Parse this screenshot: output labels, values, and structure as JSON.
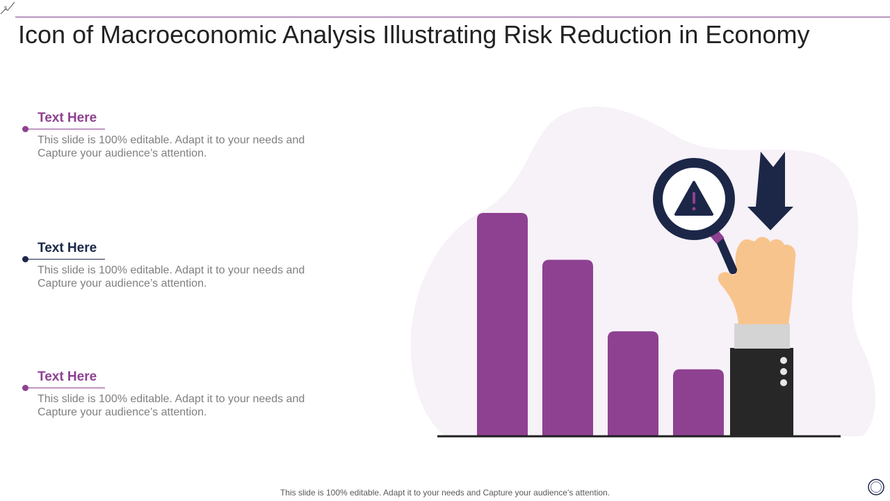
{
  "slide": {
    "title": "Icon of Macroeconomic Analysis Illustrating Risk Reduction in Economy",
    "footer": "This slide is 100% editable. Adapt it to your needs and Capture your audience’s attention."
  },
  "colors": {
    "accent_purple": "#8e4191",
    "accent_navy": "#1c2748",
    "background_blob": "#f7f1f8",
    "skin": "#f8c48d",
    "sleeve": "#272727",
    "cuff": "#d4d4d4"
  },
  "points": [
    {
      "heading": "Text Here",
      "body": "This slide is 100% editable. Adapt it to your needs and Capture your audience’s attention.",
      "color": "#8e4191"
    },
    {
      "heading": "Text Here",
      "body": "This slide is 100% editable. Adapt it to your needs and Capture your audience’s attention.",
      "color": "#1c2748"
    },
    {
      "heading": "Text Here",
      "body": "This slide is 100% editable. Adapt it to your needs and Capture your audience’s attention.",
      "color": "#8e4191"
    }
  ],
  "illustration": {
    "icons": [
      "bar-chart-icon",
      "magnifier-icon",
      "warning-icon",
      "down-arrow-icon",
      "hand-icon"
    ],
    "bar_levels": [
      1.0,
      0.79,
      0.47,
      0.3
    ]
  }
}
